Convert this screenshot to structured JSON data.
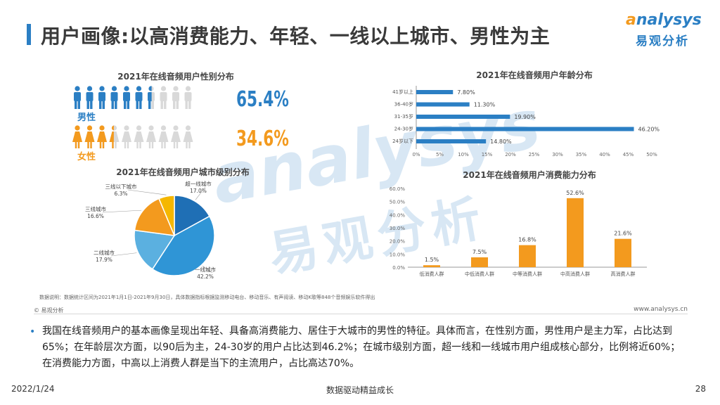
{
  "header": {
    "title": "用户画像:以高消费能力、年轻、一线以上城市、男性为主",
    "logo_en": "nalysys",
    "logo_en_initial": "a",
    "logo_cn": "易观分析"
  },
  "colors": {
    "blue": "#2b7fc4",
    "orange": "#f39a1e",
    "gray": "#d9d9d9",
    "light_blue": "#4aa3de"
  },
  "chart_data": [
    {
      "type": "pictograph",
      "title": "2021年在线音频用户性别分布",
      "series": [
        {
          "name": "男性",
          "value": 65.4,
          "label": "65.4%"
        },
        {
          "name": "女性",
          "value": 34.6,
          "label": "34.6%"
        }
      ],
      "icon_count": 10
    },
    {
      "type": "bar",
      "orientation": "horizontal",
      "title": "2021年在线音频用户年龄分布",
      "categories": [
        "41岁以上",
        "36-40岁",
        "31-35岁",
        "24-30岁",
        "24岁以下"
      ],
      "values": [
        7.8,
        11.3,
        19.9,
        46.2,
        14.8
      ],
      "value_labels": [
        "7.80%",
        "11.30%",
        "19.90%",
        "46.20%",
        "14.80%"
      ],
      "xlim": [
        0,
        50
      ],
      "x_ticks": [
        "0%",
        "5%",
        "10%",
        "15%",
        "20%",
        "25%",
        "30%",
        "35%",
        "40%",
        "45%",
        "50%"
      ]
    },
    {
      "type": "pie",
      "title": "2021年在线音频用户城市级别分布",
      "slices": [
        {
          "name": "超一线城市",
          "value": 17.0,
          "label": "17.0%"
        },
        {
          "name": "一线城市",
          "value": 42.2,
          "label": "42.2%"
        },
        {
          "name": "二线城市",
          "value": 17.9,
          "label": "17.9%"
        },
        {
          "name": "三线城市",
          "value": 16.6,
          "label": "16.6%"
        },
        {
          "name": "三线以下城市",
          "value": 6.3,
          "label": "6.3%"
        }
      ],
      "slice_colors": [
        "#1f6fb5",
        "#2f95d6",
        "#5bb0e0",
        "#f39a1e",
        "#f5b700"
      ]
    },
    {
      "type": "bar",
      "title": "2021年在线音频用户消费能力分布",
      "categories": [
        "低消费人群",
        "中低消费人群",
        "中等消费人群",
        "中高消费人群",
        "高消费人群"
      ],
      "values": [
        1.5,
        7.5,
        16.8,
        52.6,
        21.6
      ],
      "value_labels": [
        "1.5%",
        "7.5%",
        "16.8%",
        "52.6%",
        "21.6%"
      ],
      "ylim": [
        0,
        60
      ],
      "y_ticks": [
        "0.0%",
        "10.0%",
        "20.0%",
        "30.0%",
        "40.0%",
        "50.0%",
        "60.0%"
      ]
    }
  ],
  "note": "数据说明：数据统计区间为2021年1月1日-2021年9月30日，具体数据指标根据监测移动电台、移动音乐、有声阅读、移动K歌等848个音频娱乐软件得出",
  "footer": {
    "source": "© 易观分析",
    "website": "www.analysys.cn",
    "bullet": "•",
    "summary": "我国在线音频用户的基本画像呈现出年轻、具备高消费能力、居住于大城市的男性的特征。具体而言，在性别方面，男性用户是主力军，占比达到65%；在年龄层次方面，以90后为主，24-30岁的用户占比达到46.2%；在城市级别方面，超一线和一线城市用户组成核心部分，比例将近60%；在消费能力方面，中高以上消费人群是当下的主流用户，占比高达70%。",
    "date": "2022/1/24",
    "slogan": "数据驱动精益成长",
    "page": "28"
  }
}
